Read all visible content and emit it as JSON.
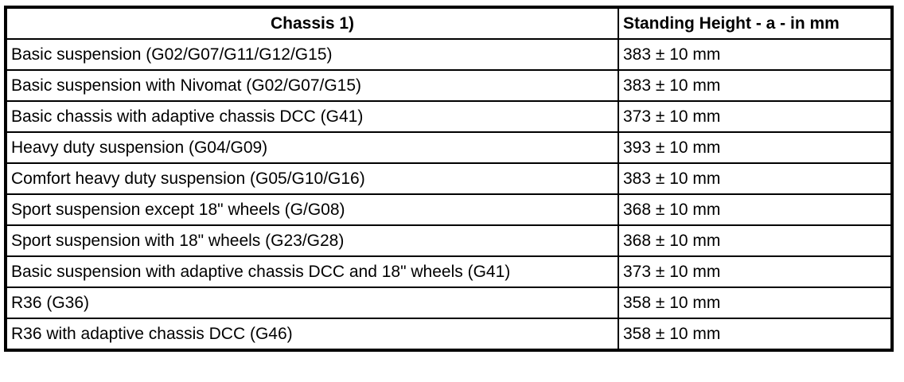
{
  "table": {
    "columns": [
      {
        "label": "Chassis 1)"
      },
      {
        "label": "Standing Height - a - in mm"
      }
    ],
    "rows": [
      {
        "chassis": "Basic suspension (G02/G07/G11/G12/G15)",
        "height": "383 ± 10 mm"
      },
      {
        "chassis": "Basic suspension with Nivomat (G02/G07/G15)",
        "height": "383 ± 10 mm"
      },
      {
        "chassis": "Basic chassis with adaptive chassis DCC (G41)",
        "height": "373 ± 10 mm"
      },
      {
        "chassis": "Heavy duty suspension (G04/G09)",
        "height": "393 ± 10 mm"
      },
      {
        "chassis": "Comfort heavy duty suspension (G05/G10/G16)",
        "height": "383 ± 10 mm"
      },
      {
        "chassis": "Sport suspension except 18\" wheels (G/G08)",
        "height": "368 ± 10 mm"
      },
      {
        "chassis": "Sport suspension with 18\" wheels (G23/G28)",
        "height": "368 ± 10 mm"
      },
      {
        "chassis": "Basic suspension with adaptive chassis DCC and 18\" wheels (G41)",
        "height": "373 ± 10 mm"
      },
      {
        "chassis": "R36 (G36)",
        "height": "358 ± 10 mm"
      },
      {
        "chassis": "R36 with adaptive chassis DCC (G46)",
        "height": "358 ± 10 mm"
      }
    ],
    "colors": {
      "border": "#000000",
      "text": "#000000",
      "background": "#ffffff"
    }
  }
}
